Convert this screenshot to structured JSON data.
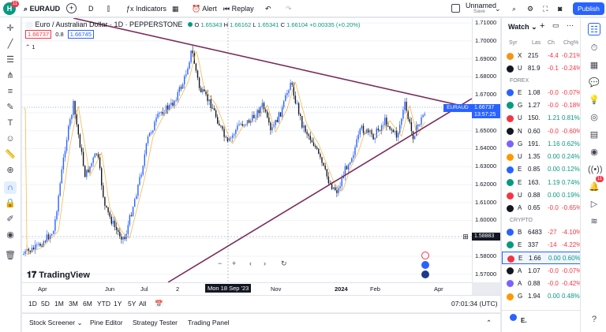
{
  "topbar": {
    "symbol": "EURAUD",
    "interval": "D",
    "indicators": "Indicators",
    "alert": "Alert",
    "replay": "Replay",
    "layout_name": "Unnamed",
    "save": "Save",
    "publish": "Publish",
    "notif_count": "11"
  },
  "legend": {
    "title": "Euro / Australian Dollar · 1D · PEPPERSTONE",
    "ohlc": {
      "o_label": "O",
      "o": "1.65343",
      "h_label": "H",
      "h": "1.66162",
      "l_label": "L",
      "l": "1.65341",
      "c_label": "C",
      "c": "1.66104",
      "change": "+0.00335 (+0.20%)"
    },
    "bid": "1.66737",
    "spread": "0.8",
    "ask": "1.66745",
    "indicator_count": "1"
  },
  "chart_data": {
    "type": "candlestick",
    "yticks": [
      "1.71000",
      "1.70000",
      "1.69000",
      "1.68000",
      "1.67000",
      "1.66000",
      "1.65000",
      "1.64000",
      "1.63000",
      "1.62000",
      "1.61000",
      "1.60000",
      "1.59000",
      "1.58000",
      "1.57000"
    ],
    "ylim": [
      1.5655,
      1.7127
    ],
    "xticks": [
      "Apr",
      "Jun",
      "Jul",
      "2",
      "Nov",
      "2024",
      "Feb",
      "Apr"
    ],
    "crosshair_x_label": "Mon 18 Sep '23",
    "crosshair_y_label": "1.58883",
    "current": {
      "symbol": "EURAUD",
      "price": "1.66737",
      "countdown": "13:57:25"
    }
  },
  "ranges": [
    "1D",
    "5D",
    "1M",
    "3M",
    "6M",
    "YTD",
    "1Y",
    "5Y",
    "All"
  ],
  "clock": "07:01:34 (UTC)",
  "bottom_tabs": [
    "Stock Screener",
    "Pine Editor",
    "Strategy Tester",
    "Trading Panel"
  ],
  "watchlist": {
    "title": "Watch",
    "cols": [
      "Syr",
      "Las",
      "Ch",
      "Chg%"
    ],
    "rows": [
      {
        "s": "X",
        "l": "215",
        "c": "-4.4",
        "p": "-0.21%",
        "col": "#f7931a",
        "up": false
      },
      {
        "s": "U",
        "l": "81.9",
        "c": "-0.1",
        "p": "-0.24%",
        "col": "#131722",
        "up": false
      }
    ],
    "forex_label": "FOREX",
    "forex": [
      {
        "s": "E",
        "l": "1.08",
        "c": "-0.0",
        "p": "-0.07%",
        "up": false
      },
      {
        "s": "G",
        "l": "1.27",
        "c": "-0.0",
        "p": "-0.18%",
        "up": false
      },
      {
        "s": "U",
        "l": "150.",
        "c": "1.21",
        "p": "0.81%",
        "up": true
      },
      {
        "s": "N",
        "l": "0.60",
        "c": "-0.0",
        "p": "-0.60%",
        "up": false
      },
      {
        "s": "G",
        "l": "191.",
        "c": "1.16",
        "p": "0.62%",
        "up": true
      },
      {
        "s": "U",
        "l": "1.35",
        "c": "0.00",
        "p": "0.24%",
        "up": true
      },
      {
        "s": "E",
        "l": "0.85",
        "c": "0.00",
        "p": "0.12%",
        "up": true
      },
      {
        "s": "E",
        "l": "163.",
        "c": "1.19",
        "p": "0.74%",
        "up": true
      },
      {
        "s": "U",
        "l": "0.88",
        "c": "0.00",
        "p": "0.19%",
        "up": true
      },
      {
        "s": "A",
        "l": "0.65",
        "c": "-0.0",
        "p": "-0.65%",
        "up": false
      }
    ],
    "crypto_label": "CRYPTO",
    "crypto": [
      {
        "s": "B",
        "l": "6483",
        "c": "-27",
        "p": "-4.10%",
        "up": false
      },
      {
        "s": "E",
        "l": "337",
        "c": "-14",
        "p": "-4.22%",
        "up": false
      },
      {
        "s": "E",
        "l": "1.66",
        "c": "0.00",
        "p": "0.60%",
        "up": true
      },
      {
        "s": "A",
        "l": "1.07",
        "c": "-0.0",
        "p": "-0.07%",
        "up": false
      },
      {
        "s": "A",
        "l": "0.88",
        "c": "-0.0",
        "p": "-0.42%",
        "up": false
      },
      {
        "s": "G",
        "l": "1.94",
        "c": "0.00",
        "p": "0.48%",
        "up": true
      }
    ],
    "footer_symbol": "E."
  },
  "right_badge": "11"
}
